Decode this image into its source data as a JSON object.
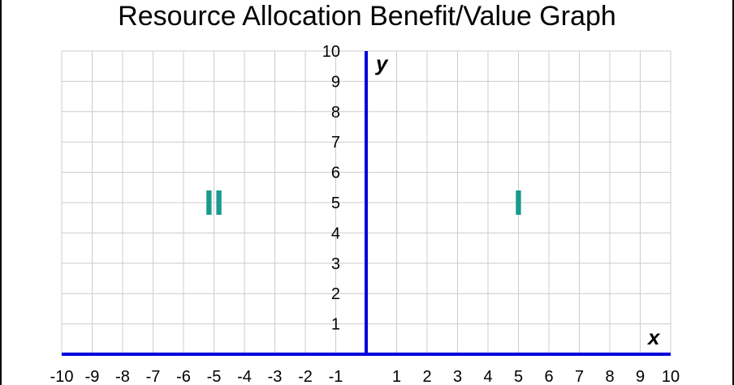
{
  "chart_data": {
    "type": "scatter",
    "title": "Resource Allocation Benefit/Value Graph",
    "xlabel": "x",
    "ylabel": "y",
    "xlim": [
      -10,
      10
    ],
    "ylim": [
      0,
      10
    ],
    "x_ticks": [
      -10,
      -9,
      -8,
      -7,
      -6,
      -5,
      -4,
      -3,
      -2,
      -1,
      1,
      2,
      3,
      4,
      5,
      6,
      7,
      8,
      9,
      10
    ],
    "y_ticks": [
      1,
      2,
      3,
      4,
      5,
      6,
      7,
      8,
      9,
      10
    ],
    "grid": true,
    "series": [],
    "annotations": [
      {
        "text": "I",
        "x": 5,
        "y": 5
      },
      {
        "text": "II",
        "x": -5,
        "y": 5
      }
    ]
  },
  "colors": {
    "axis": "#0000dd",
    "grid": "#cccccc",
    "quadrant_label": "#1a9a8e",
    "text": "#000000"
  }
}
